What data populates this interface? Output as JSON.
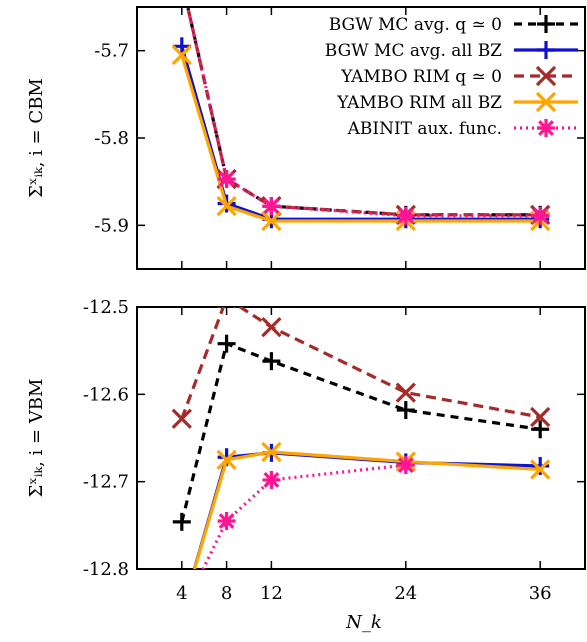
{
  "chart_data": {
    "type": "line",
    "x": [
      4,
      8,
      12,
      24,
      36
    ],
    "xlabel": "N_k",
    "xticks": [
      "4",
      "8",
      "12",
      "24",
      "36"
    ],
    "legend": {
      "placement": "top-right",
      "entries": [
        "BGW MC avg. q ≃ 0",
        "BGW MC avg. all BZ",
        "YAMBO RIM q ≃ 0",
        "YAMBO RIM all BZ",
        "ABINIT aux. func."
      ]
    },
    "series_styles": [
      {
        "color": "#000000",
        "dash": "8,6",
        "marker": "plus"
      },
      {
        "color": "#1010d0",
        "dash": "",
        "marker": "plus"
      },
      {
        "color": "#a52a2a",
        "dash": "10,6",
        "marker": "x"
      },
      {
        "color": "#ffa500",
        "dash": "",
        "marker": "x"
      },
      {
        "color": "#ff1493",
        "dash": "2,4",
        "marker": "star"
      }
    ],
    "panels": [
      {
        "ylabel": "Σˣᵢₖ, i = CBM",
        "ylim": [
          -5.95,
          -5.65
        ],
        "yticks": [
          "-5.7",
          "-5.8",
          "-5.9"
        ],
        "series": [
          {
            "values": [
              -5.62,
              -5.847,
              -5.878,
              -5.888,
              -5.888
            ]
          },
          {
            "values": [
              -5.695,
              -5.875,
              -5.893,
              -5.893,
              -5.893
            ]
          },
          {
            "values": [
              -5.62,
              -5.847,
              -5.878,
              -5.888,
              -5.888
            ]
          },
          {
            "values": [
              -5.705,
              -5.878,
              -5.895,
              -5.895,
              -5.895
            ]
          },
          {
            "values": [
              -5.62,
              -5.847,
              -5.878,
              -5.889,
              -5.889
            ]
          }
        ]
      },
      {
        "ylabel": "Σˣᵢₖ, i = VBM",
        "ylim": [
          -12.8,
          -12.5
        ],
        "yticks": [
          "-12.5",
          "-12.6",
          "-12.7",
          "-12.8"
        ],
        "series": [
          {
            "values": [
              -12.746,
              -12.542,
              -12.562,
              -12.618,
              -12.64
            ]
          },
          {
            "values": [
              -12.85,
              -12.672,
              -12.667,
              -12.678,
              -12.682
            ]
          },
          {
            "values": [
              -12.628,
              -12.49,
              -12.523,
              -12.598,
              -12.626
            ]
          },
          {
            "values": [
              -12.85,
              -12.675,
              -12.666,
              -12.677,
              -12.686
            ]
          },
          {
            "values": [
              -12.85,
              -12.745,
              -12.698,
              -12.681,
              null
            ]
          }
        ]
      }
    ]
  }
}
